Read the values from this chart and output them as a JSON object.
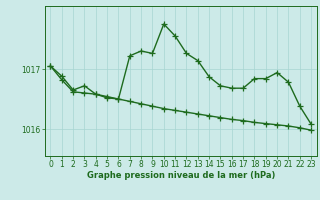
{
  "line1_x": [
    0,
    1,
    2,
    3,
    4,
    5,
    6,
    7,
    8,
    9,
    10,
    11,
    12,
    13,
    14,
    15,
    16,
    17,
    18,
    19,
    20,
    21,
    22,
    23
  ],
  "line1_y": [
    1017.05,
    1016.88,
    1016.65,
    1016.72,
    1016.58,
    1016.52,
    1016.5,
    1017.22,
    1017.3,
    1017.26,
    1017.75,
    1017.55,
    1017.26,
    1017.14,
    1016.87,
    1016.72,
    1016.68,
    1016.68,
    1016.84,
    1016.84,
    1016.94,
    1016.78,
    1016.38,
    1016.08
  ],
  "line2_x": [
    0,
    1,
    2,
    3,
    4,
    5,
    6,
    7,
    8,
    9,
    10,
    11,
    12,
    13,
    14,
    15,
    16,
    17,
    18,
    19,
    20,
    21,
    22,
    23
  ],
  "line2_y": [
    1017.05,
    1016.82,
    1016.62,
    1016.6,
    1016.58,
    1016.54,
    1016.5,
    1016.46,
    1016.42,
    1016.38,
    1016.34,
    1016.31,
    1016.28,
    1016.25,
    1016.22,
    1016.19,
    1016.16,
    1016.14,
    1016.11,
    1016.09,
    1016.07,
    1016.05,
    1016.02,
    1015.98
  ],
  "line_color": "#1e6b1e",
  "bg_color": "#cceae8",
  "grid_color": "#a8d5d2",
  "xlabel": "Graphe pression niveau de la mer (hPa)",
  "ytick_vals": [
    1016,
    1017
  ],
  "ytick_labels": [
    "1016",
    "1017"
  ],
  "xlim": [
    -0.5,
    23.5
  ],
  "ylim": [
    1015.55,
    1018.05
  ],
  "marker": "+",
  "markersize": 4,
  "linewidth": 1.0,
  "tick_fontsize": 5.5,
  "xlabel_fontsize": 6.0
}
